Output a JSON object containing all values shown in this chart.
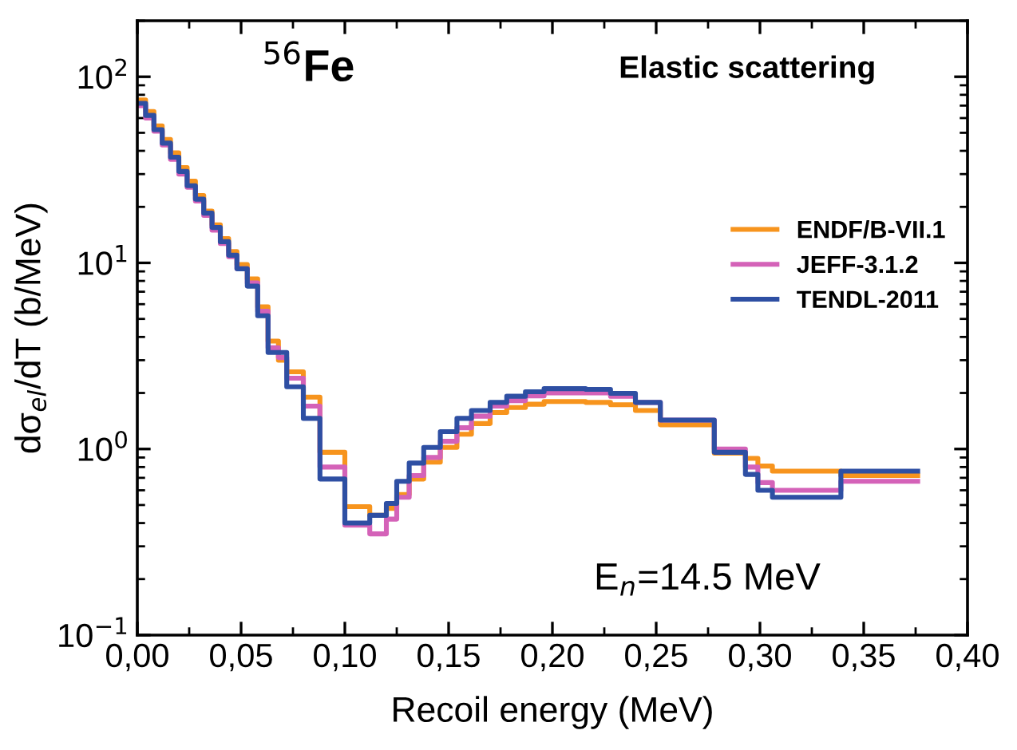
{
  "chart_data": {
    "type": "step",
    "xlabel": "Recoil energy (MeV)",
    "ylabel": "dσ$_{el}$/dT (b/MeV)",
    "annotations": [
      "$^{56}$Fe",
      "Elastic scattering",
      "E$_{n}$=14.5 MeV"
    ],
    "x": [
      0,
      0.004,
      0.008,
      0.012,
      0.016,
      0.02,
      0.024,
      0.028,
      0.032,
      0.036,
      0.04,
      0.044,
      0.048,
      0.053,
      0.058,
      0.063,
      0.068,
      0.072,
      0.08,
      0.088,
      0.1,
      0.112,
      0.12,
      0.125,
      0.131,
      0.138,
      0.146,
      0.154,
      0.161,
      0.17,
      0.178,
      0.187,
      0.196,
      0.216,
      0.228,
      0.24,
      0.252,
      0.278,
      0.293,
      0.299,
      0.306,
      0.339,
      0.376
    ],
    "series": [
      {
        "name": "ENDF/B-VII.1",
        "color": "#f7941d",
        "values": [
          75,
          65,
          54.5,
          46,
          39,
          32.5,
          27.5,
          23,
          19,
          16,
          13.5,
          11.5,
          9.8,
          8.2,
          5.8,
          3.8,
          3.0,
          2.6,
          1.9,
          0.96,
          0.49,
          0.44,
          0.48,
          0.57,
          0.69,
          0.85,
          1.02,
          1.2,
          1.37,
          1.57,
          1.67,
          1.74,
          1.8,
          1.78,
          1.73,
          1.61,
          1.35,
          0.95,
          0.89,
          0.81,
          0.76,
          0.72,
          0.72
        ]
      },
      {
        "name": "JEFF-3.1.2",
        "color": "#d462b8",
        "values": [
          70,
          60,
          51,
          43,
          36,
          30,
          25.5,
          21.5,
          18,
          15,
          12.7,
          10.8,
          9.3,
          7.8,
          5.5,
          3.5,
          3.1,
          2.4,
          1.7,
          0.8,
          0.39,
          0.35,
          0.42,
          0.55,
          0.72,
          0.9,
          1.1,
          1.3,
          1.5,
          1.7,
          1.82,
          1.93,
          2.0,
          2.0,
          1.92,
          1.78,
          1.43,
          1.0,
          0.8,
          0.66,
          0.6,
          0.67,
          0.67
        ]
      },
      {
        "name": "TENDL-2011",
        "color": "#2e4fa3",
        "values": [
          72,
          62,
          52,
          44,
          37,
          31,
          26,
          22,
          18.5,
          15.5,
          13,
          11,
          9.3,
          7.5,
          5.2,
          3.3,
          3.3,
          2.16,
          1.46,
          0.69,
          0.4,
          0.44,
          0.51,
          0.67,
          0.84,
          1.02,
          1.24,
          1.46,
          1.61,
          1.78,
          1.92,
          2.03,
          2.11,
          2.09,
          1.99,
          1.78,
          1.43,
          0.96,
          0.73,
          0.6,
          0.55,
          0.76,
          0.76
        ]
      }
    ],
    "xlim": [
      0,
      0.4
    ],
    "ylim": [
      0.1,
      200
    ],
    "log": "y",
    "xticks": [
      {
        "value": 0,
        "label": "0,00"
      },
      {
        "value": 0.05,
        "label": "0,05"
      },
      {
        "value": 0.1,
        "label": "0,10"
      },
      {
        "value": 0.15,
        "label": "0,15"
      },
      {
        "value": 0.2,
        "label": "0,20"
      },
      {
        "value": 0.25,
        "label": "0,25"
      },
      {
        "value": 0.3,
        "label": "0,30"
      },
      {
        "value": 0.35,
        "label": "0,35"
      },
      {
        "value": 0.4,
        "label": "0,40"
      }
    ],
    "yticks": [
      {
        "value": 0.1,
        "label": "10$^{−1}$"
      },
      {
        "value": 1,
        "label": "10$^{0}$"
      },
      {
        "value": 10,
        "label": "10$^{1}$"
      },
      {
        "value": 100,
        "label": "10$^{2}$"
      }
    ],
    "legend": "right",
    "grid": false,
    "line_style": "solid"
  }
}
